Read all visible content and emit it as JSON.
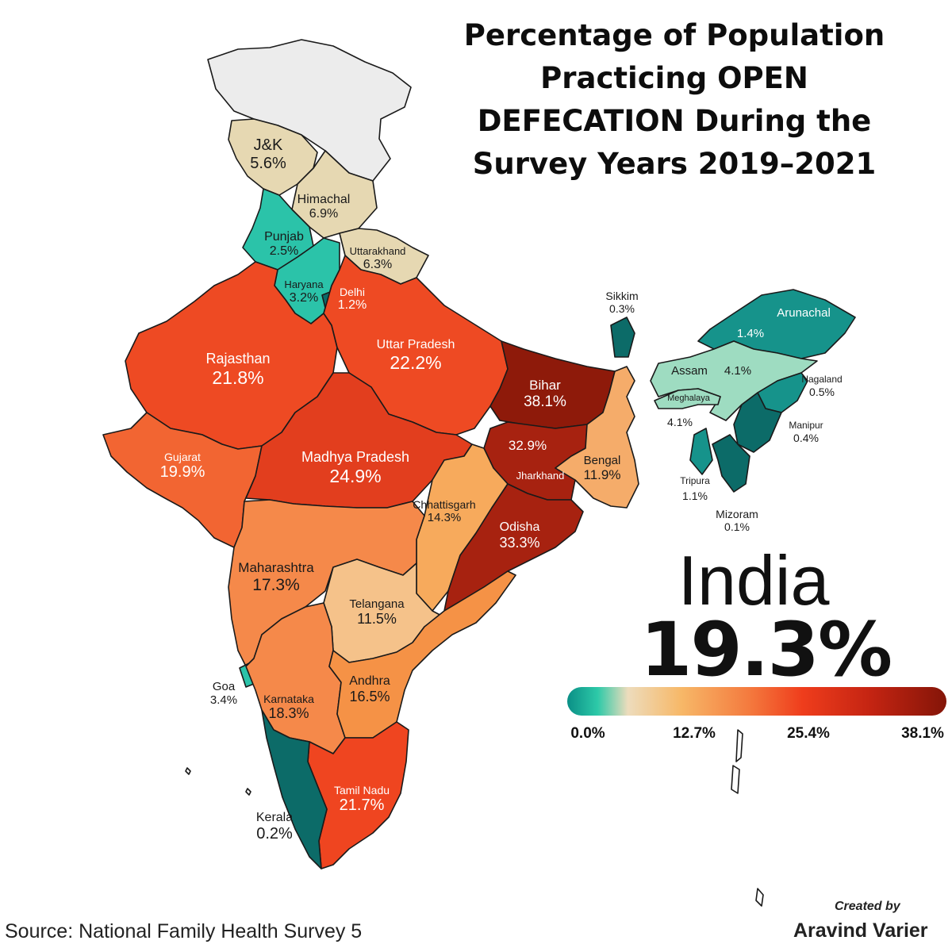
{
  "title": {
    "line1": "Percentage of Population",
    "line2": "Practicing OPEN",
    "line3": "DEFECATION During the",
    "line4": "Survey Years 2019–2021"
  },
  "states": [
    {
      "id": "jk",
      "name": "J&K",
      "value": "5.6%",
      "pct": 5.6
    },
    {
      "id": "himachal",
      "name": "Himachal",
      "value": "6.9%",
      "pct": 6.9
    },
    {
      "id": "punjab",
      "name": "Punjab",
      "value": "2.5%",
      "pct": 2.5
    },
    {
      "id": "uttarakhand",
      "name": "Uttarakhand",
      "value": "6.3%",
      "pct": 6.3
    },
    {
      "id": "haryana",
      "name": "Haryana",
      "value": "3.2%",
      "pct": 3.2
    },
    {
      "id": "delhi",
      "name": "Delhi",
      "value": "1.2%",
      "pct": 1.2
    },
    {
      "id": "rajasthan",
      "name": "Rajasthan",
      "value": "21.8%",
      "pct": 21.8
    },
    {
      "id": "uttar-pradesh",
      "name": "Uttar Pradesh",
      "value": "22.2%",
      "pct": 22.2
    },
    {
      "id": "bihar",
      "name": "Bihar",
      "value": "38.1%",
      "pct": 38.1
    },
    {
      "id": "gujarat",
      "name": "Gujarat",
      "value": "19.9%",
      "pct": 19.9
    },
    {
      "id": "madhya-pradesh",
      "name": "Madhya Pradesh",
      "value": "24.9%",
      "pct": 24.9
    },
    {
      "id": "jharkhand",
      "name": "Jharkhand",
      "value": "32.9%",
      "pct": 32.9
    },
    {
      "id": "bengal",
      "name": "Bengal",
      "value": "11.9%",
      "pct": 11.9
    },
    {
      "id": "chhattisgarh",
      "name": "Chhattisgarh",
      "value": "14.3%",
      "pct": 14.3
    },
    {
      "id": "odisha",
      "name": "Odisha",
      "value": "33.3%",
      "pct": 33.3
    },
    {
      "id": "maharashtra",
      "name": "Maharashtra",
      "value": "17.3%",
      "pct": 17.3
    },
    {
      "id": "telangana",
      "name": "Telangana",
      "value": "11.5%",
      "pct": 11.5
    },
    {
      "id": "goa",
      "name": "Goa",
      "value": "3.4%",
      "pct": 3.4
    },
    {
      "id": "karnataka",
      "name": "Karnataka",
      "value": "18.3%",
      "pct": 18.3
    },
    {
      "id": "andhra",
      "name": "Andhra",
      "value": "16.5%",
      "pct": 16.5
    },
    {
      "id": "tamil-nadu",
      "name": "Tamil Nadu",
      "value": "21.7%",
      "pct": 21.7
    },
    {
      "id": "kerala",
      "name": "Kerala",
      "value": "0.2%",
      "pct": 0.2
    },
    {
      "id": "sikkim",
      "name": "Sikkim",
      "value": "0.3%",
      "pct": 0.3
    },
    {
      "id": "arunachal",
      "name": "Arunachal",
      "value": "1.4%",
      "pct": 1.4
    },
    {
      "id": "assam",
      "name": "Assam",
      "value": "4.1%",
      "pct": 4.1
    },
    {
      "id": "meghalaya",
      "name": "Meghalaya",
      "value": "4.1%",
      "pct": 4.1
    },
    {
      "id": "nagaland",
      "name": "Nagaland",
      "value": "0.5%",
      "pct": 0.5
    },
    {
      "id": "manipur",
      "name": "Manipur",
      "value": "0.4%",
      "pct": 0.4
    },
    {
      "id": "tripura",
      "name": "Tripura",
      "value": "1.1%",
      "pct": 1.1
    },
    {
      "id": "mizoram",
      "name": "Mizoram",
      "value": "0.1%",
      "pct": 0.1
    }
  ],
  "national": {
    "name": "India",
    "value": "19.3%"
  },
  "legend": {
    "ticks": [
      "0.0%",
      "12.7%",
      "25.4%",
      "38.1%"
    ],
    "min": 0.0,
    "max": 38.1,
    "colors": [
      "#0a8f86",
      "#2dc9a8",
      "#eddcbc",
      "#f7b868",
      "#f47a3e",
      "#ef3d1c",
      "#c42412",
      "#841508"
    ]
  },
  "source": "Source: National Family Health Survey 5",
  "credit": {
    "line1": "Created by",
    "line2": "Aravind Varier"
  }
}
